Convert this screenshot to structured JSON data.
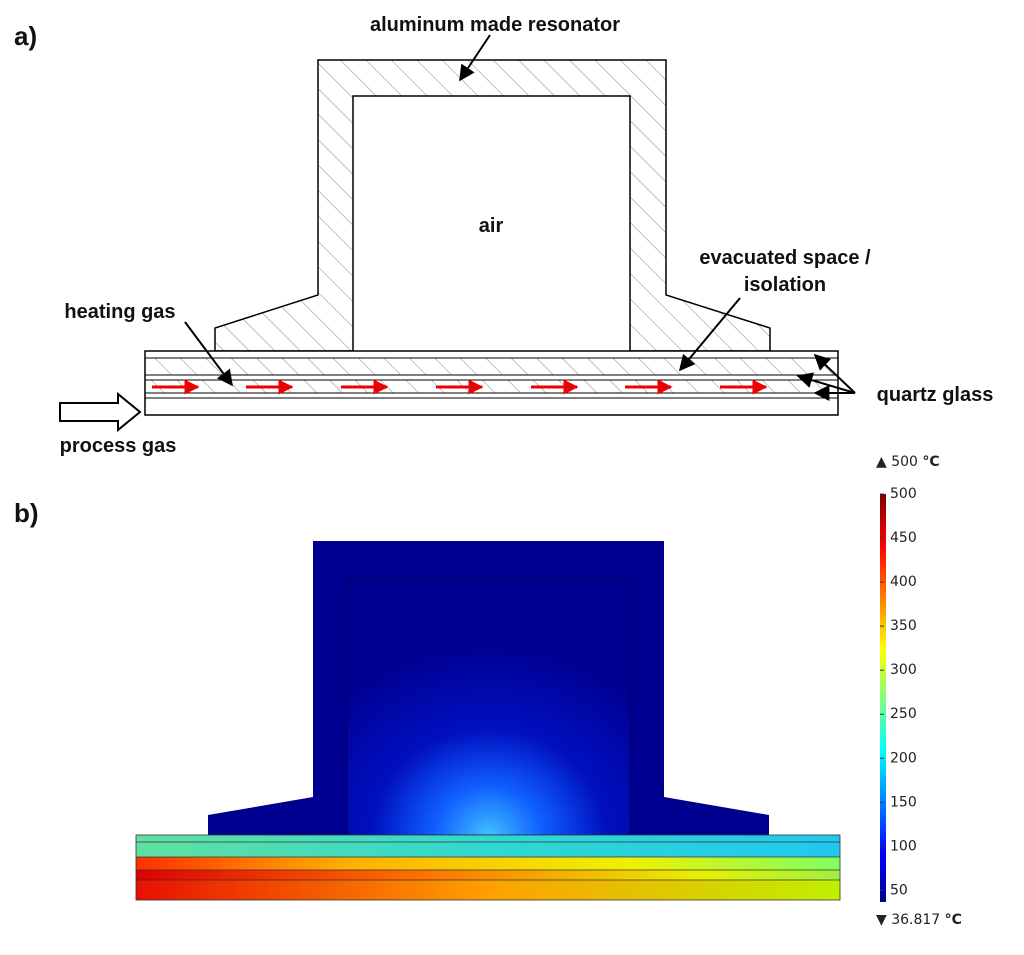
{
  "panel_a": {
    "label": "a)",
    "annotations": {
      "resonator": "aluminum made resonator",
      "air": "air",
      "evacuated": [
        "evacuated space /",
        "isolation"
      ],
      "heating_gas": "heating gas",
      "quartz": "quartz glass",
      "process_gas": "process gas"
    }
  },
  "panel_b": {
    "label": "b)",
    "colorbar": {
      "max": 500,
      "min": 36.817,
      "unit": "°C",
      "ticks": [
        50,
        100,
        150,
        200,
        250,
        300,
        350,
        400,
        450,
        500
      ]
    }
  }
}
